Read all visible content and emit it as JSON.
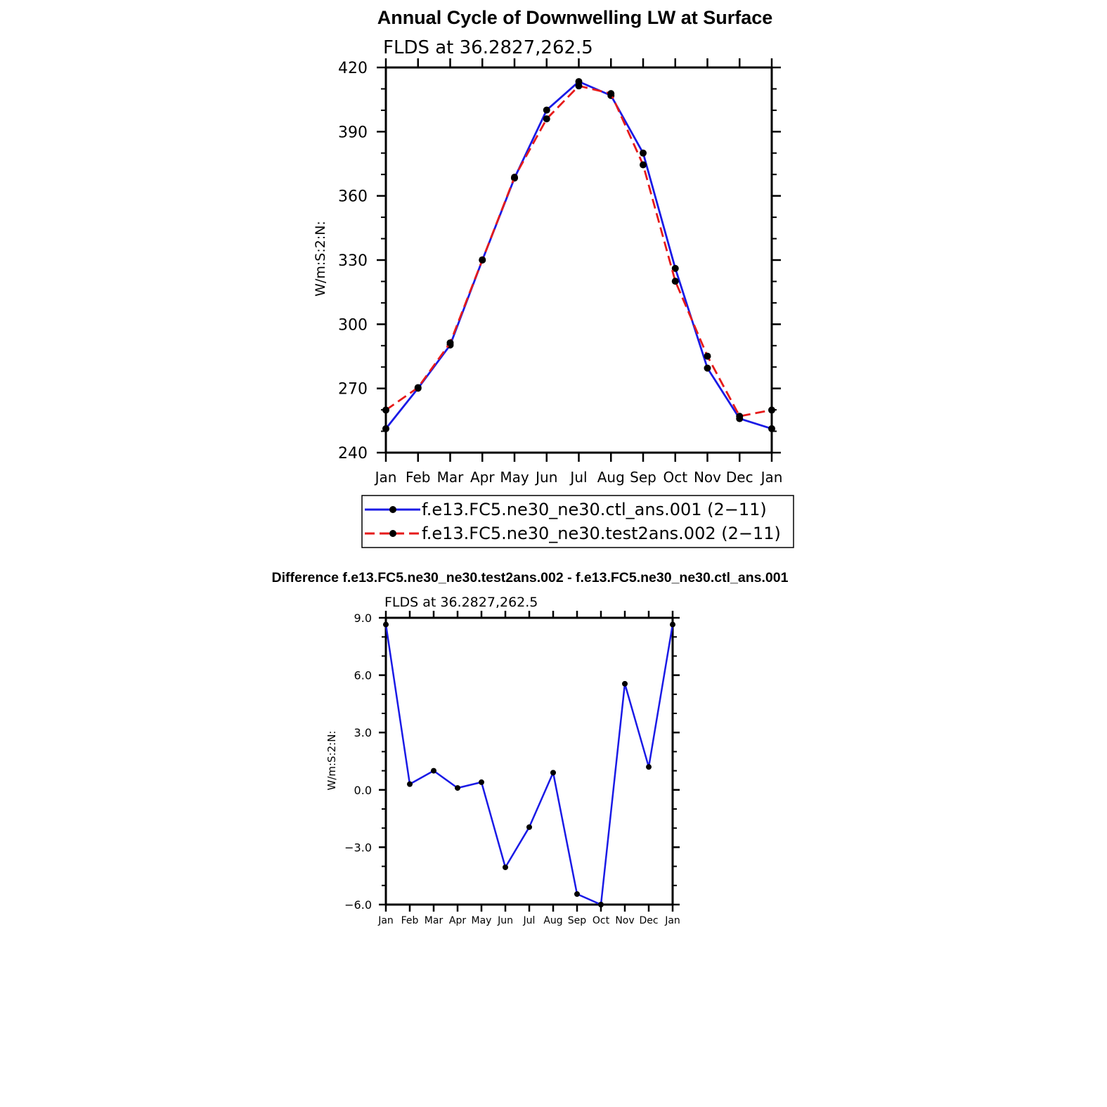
{
  "colors": {
    "ctl": "#1a1ae6",
    "test": "#e61a1a",
    "diff": "#1a1ae6",
    "marker": "#000000",
    "axis": "#000000"
  },
  "chart_data": [
    {
      "type": "line",
      "title": "Annual Cycle of Downwelling LW at Surface",
      "subtitle": "FLDS at 36.2827,262.5",
      "xlabel": "",
      "ylabel": "W/m:S:2:N:",
      "categories": [
        "Jan",
        "Feb",
        "Mar",
        "Apr",
        "May",
        "Jun",
        "Jul",
        "Aug",
        "Sep",
        "Oct",
        "Nov",
        "Dec",
        "Jan"
      ],
      "ylim": [
        240,
        420
      ],
      "yticks": [
        "240",
        "270",
        "300",
        "330",
        "360",
        "390",
        "420"
      ],
      "grid": false,
      "legend_position": "bottom",
      "series": [
        {
          "name": "f.e13.FC5.ne30_ne30.ctl_ans.001 (2−11)",
          "style": "solid",
          "values": [
            251.2,
            270.1,
            290.3,
            330.0,
            368.3,
            400.1,
            413.4,
            406.9,
            380.0,
            326.1,
            279.5,
            255.9,
            251.2
          ]
        },
        {
          "name": "f.e13.FC5.ne30_ne30.test2ans.002 (2−11)",
          "style": "dashed",
          "values": [
            259.9,
            270.4,
            291.3,
            330.1,
            368.7,
            396.0,
            411.4,
            407.8,
            374.5,
            320.1,
            285.1,
            257.0,
            259.9
          ]
        }
      ]
    },
    {
      "type": "line",
      "title": "Difference f.e13.FC5.ne30_ne30.test2ans.002 - f.e13.FC5.ne30_ne30.ctl_ans.001",
      "subtitle": "FLDS at 36.2827,262.5",
      "xlabel": "",
      "ylabel": "W/m:S:2:N:",
      "categories": [
        "Jan",
        "Feb",
        "Mar",
        "Apr",
        "May",
        "Jun",
        "Jul",
        "Aug",
        "Sep",
        "Oct",
        "Nov",
        "Dec",
        "Jan"
      ],
      "ylim": [
        -6.0,
        9.0
      ],
      "yticks": [
        "−6.0",
        "−3.0",
        "0.0",
        "3.0",
        "6.0",
        "9.0"
      ],
      "grid": false,
      "series": [
        {
          "style": "solid",
          "values": [
            8.65,
            0.3,
            1.0,
            0.1,
            0.4,
            -4.05,
            -1.95,
            0.9,
            -5.45,
            -6.0,
            5.55,
            1.2,
            8.65
          ]
        }
      ]
    }
  ]
}
